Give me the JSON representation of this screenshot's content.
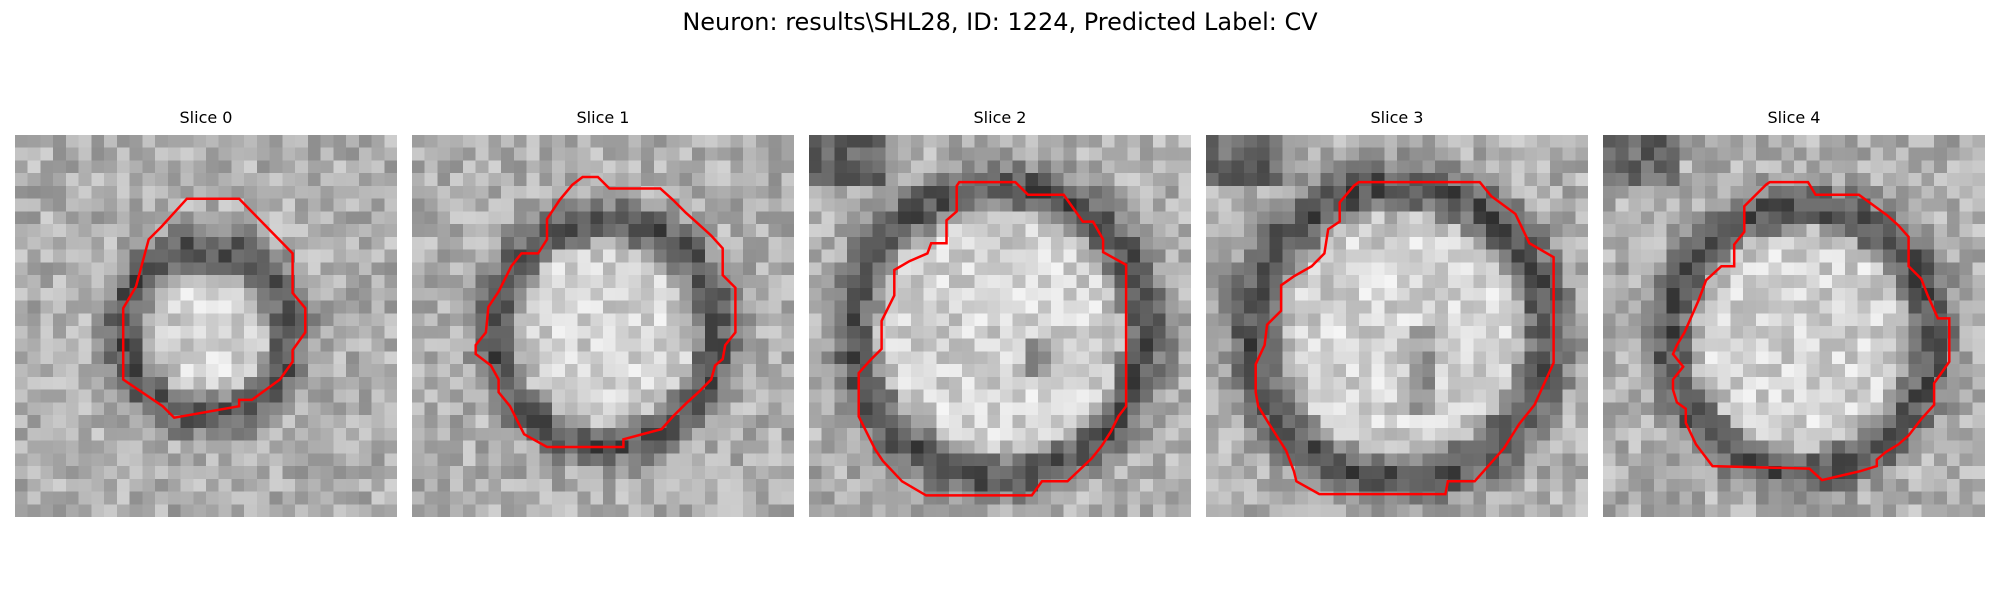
{
  "figure": {
    "title": "Neuron: results\\SHL28, ID: 1224, Predicted Label: CV"
  },
  "panels": [
    {
      "title": "Slice 0"
    },
    {
      "title": "Slice 1"
    },
    {
      "title": "Slice 2"
    },
    {
      "title": "Slice 3"
    },
    {
      "title": "Slice 4"
    }
  ],
  "colors": {
    "background": "#ffffff",
    "contour": "#ff0000"
  }
}
